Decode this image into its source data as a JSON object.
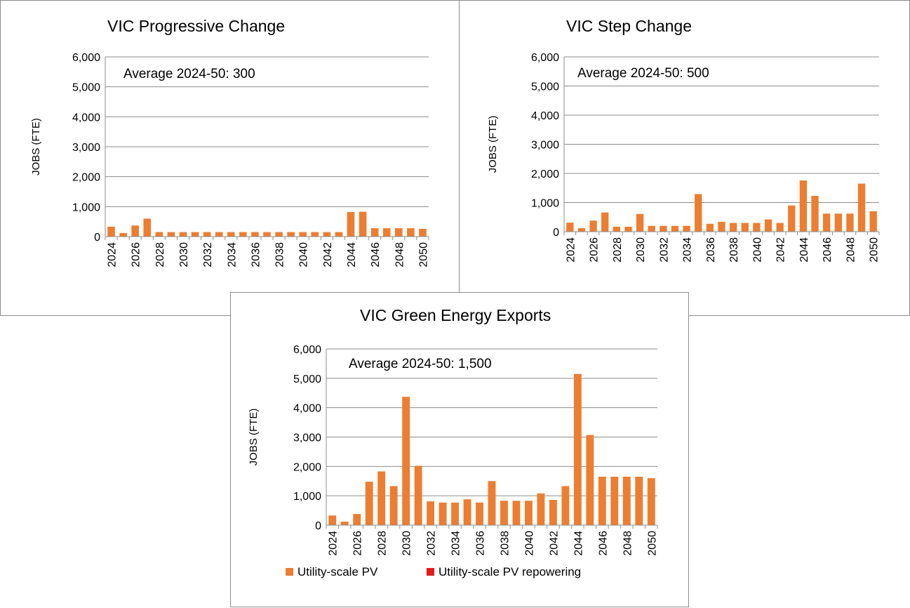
{
  "chart_data": [
    {
      "type": "bar",
      "title": "VIC Progressive Change",
      "annotation": "Average  2024-50: 300",
      "xlabel": "",
      "ylabel": "JOBS (FTE)",
      "ylim": [
        0,
        6000
      ],
      "yticks": [
        "0",
        "1,000",
        "2,000",
        "3,000",
        "4,000",
        "5,000",
        "6,000"
      ],
      "categories": [
        "2024",
        "2025",
        "2026",
        "2027",
        "2028",
        "2029",
        "2030",
        "2031",
        "2032",
        "2033",
        "2034",
        "2035",
        "2036",
        "2037",
        "2038",
        "2039",
        "2040",
        "2041",
        "2042",
        "2043",
        "2044",
        "2045",
        "2046",
        "2047",
        "2048",
        "2049",
        "2050"
      ],
      "xtick_labels": [
        "2024",
        "2026",
        "2028",
        "2030",
        "2032",
        "2034",
        "2036",
        "2038",
        "2040",
        "2042",
        "2044",
        "2046",
        "2048",
        "2050"
      ],
      "series": [
        {
          "name": "Utility-scale PV",
          "color": "#ed7d31",
          "values": [
            330,
            120,
            370,
            600,
            150,
            150,
            150,
            150,
            150,
            150,
            150,
            150,
            150,
            150,
            150,
            150,
            150,
            150,
            150,
            150,
            820,
            830,
            280,
            280,
            280,
            280,
            260
          ]
        }
      ]
    },
    {
      "type": "bar",
      "title": "VIC Step Change",
      "annotation": "Average  2024-50: 500",
      "xlabel": "",
      "ylabel": "JOBS (FTE)",
      "ylim": [
        0,
        6000
      ],
      "yticks": [
        "0",
        "1,000",
        "2,000",
        "3,000",
        "4,000",
        "5,000",
        "6,000"
      ],
      "categories": [
        "2024",
        "2025",
        "2026",
        "2027",
        "2028",
        "2029",
        "2030",
        "2031",
        "2032",
        "2033",
        "2034",
        "2035",
        "2036",
        "2037",
        "2038",
        "2039",
        "2040",
        "2041",
        "2042",
        "2043",
        "2044",
        "2045",
        "2046",
        "2047",
        "2048",
        "2049",
        "2050"
      ],
      "xtick_labels": [
        "2024",
        "2026",
        "2028",
        "2030",
        "2032",
        "2034",
        "2036",
        "2038",
        "2040",
        "2042",
        "2044",
        "2046",
        "2048",
        "2050"
      ],
      "series": [
        {
          "name": "Utility-scale PV",
          "color": "#ed7d31",
          "values": [
            310,
            120,
            380,
            660,
            170,
            170,
            610,
            200,
            200,
            200,
            200,
            1290,
            270,
            340,
            300,
            300,
            300,
            420,
            300,
            900,
            1760,
            1230,
            620,
            620,
            620,
            1650,
            700
          ]
        }
      ]
    },
    {
      "type": "bar",
      "title": "VIC Green Energy Exports",
      "annotation": "Average  2024-50: 1,500",
      "xlabel": "",
      "ylabel": "JOBS (FTE)",
      "ylim": [
        0,
        6000
      ],
      "yticks": [
        "0",
        "1,000",
        "2,000",
        "3,000",
        "4,000",
        "5,000",
        "6,000"
      ],
      "categories": [
        "2024",
        "2025",
        "2026",
        "2027",
        "2028",
        "2029",
        "2030",
        "2031",
        "2032",
        "2033",
        "2034",
        "2035",
        "2036",
        "2037",
        "2038",
        "2039",
        "2040",
        "2041",
        "2042",
        "2043",
        "2044",
        "2045",
        "2046",
        "2047",
        "2048",
        "2049",
        "2050"
      ],
      "xtick_labels": [
        "2024",
        "2026",
        "2028",
        "2030",
        "2032",
        "2034",
        "2036",
        "2038",
        "2040",
        "2042",
        "2044",
        "2046",
        "2048",
        "2050"
      ],
      "series": [
        {
          "name": "Utility-scale PV",
          "color": "#ed7d31",
          "values": [
            330,
            120,
            380,
            1480,
            1830,
            1330,
            4370,
            2020,
            810,
            770,
            770,
            880,
            770,
            1500,
            830,
            830,
            830,
            1080,
            860,
            1330,
            5150,
            3070,
            1650,
            1650,
            1650,
            1650,
            1600
          ]
        },
        {
          "name": "Utility-scale PV repowering",
          "color": "#e31a1c",
          "values": [
            0,
            0,
            0,
            0,
            0,
            0,
            0,
            0,
            0,
            0,
            0,
            0,
            0,
            0,
            0,
            0,
            0,
            0,
            0,
            0,
            0,
            0,
            0,
            0,
            0,
            0,
            0
          ]
        }
      ],
      "legend": [
        {
          "label": "Utility-scale PV",
          "color": "#ed7d31"
        },
        {
          "label": "Utility-scale PV repowering",
          "color": "#e31a1c"
        }
      ]
    }
  ]
}
